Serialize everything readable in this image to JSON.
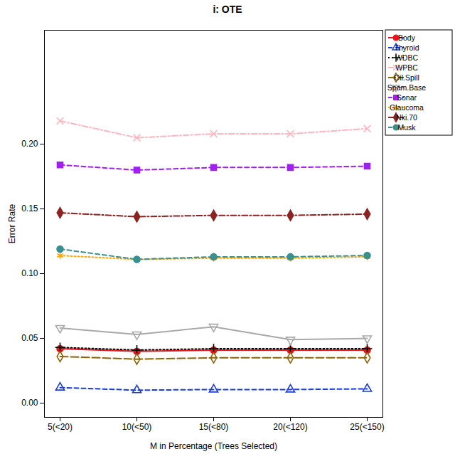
{
  "chart_data": {
    "type": "line",
    "title": "i: OTE",
    "x_label": "M in Percentage (Trees Selected)",
    "y_label": "Error Rate",
    "categories": [
      "5(<20)",
      "10(<50)",
      "15(<80)",
      "20(<120)",
      "25(<150)"
    ],
    "ylim": [
      -0.011,
      0.288
    ],
    "yticks": [
      {
        "value": 0,
        "label": "0.00"
      },
      0.05,
      {
        "value": 0.1,
        "label": "0.10"
      },
      0.15,
      {
        "value": 0.2,
        "label": "0.20"
      }
    ],
    "grid": false,
    "legend": "top-right",
    "series": [
      {
        "name": "Body",
        "color": "#e8141c",
        "marker": "filled-circle",
        "line_style": "solid",
        "values": [
          0.042,
          0.04,
          0.041,
          0.041,
          0.041
        ]
      },
      {
        "name": "Thyroid",
        "color": "#1a3cdc",
        "marker": "open-triangle",
        "line_style": "dashed",
        "values": [
          0.012,
          0.01,
          0.0105,
          0.0105,
          0.011
        ]
      },
      {
        "name": "WDBC",
        "color": "#000000",
        "marker": "plus",
        "line_style": "dotted",
        "values": [
          0.043,
          0.041,
          0.042,
          0.042,
          0.042
        ]
      },
      {
        "name": "WPBC",
        "color": "#ffb6c1",
        "marker": "times",
        "line_style": "dashdot",
        "values": [
          0.218,
          0.205,
          0.208,
          0.208,
          0.212
        ]
      },
      {
        "name": "Oil.Spill",
        "color": "#8b6508",
        "marker": "open-diamond",
        "line_style": "longdash",
        "values": [
          0.036,
          0.034,
          0.035,
          0.035,
          0.035
        ]
      },
      {
        "name": "Spam.Base",
        "color": "#a9a9a9",
        "marker": "open-triangle-down",
        "line_style": "solid",
        "values": [
          0.058,
          0.053,
          0.059,
          0.049,
          0.05
        ]
      },
      {
        "name": "Sonar",
        "color": "#a020f0",
        "marker": "filled-square",
        "line_style": "dashed",
        "values": [
          0.184,
          0.18,
          0.182,
          0.182,
          0.183
        ]
      },
      {
        "name": "Glaucoma",
        "color": "#ffa500",
        "marker": "asterisk",
        "line_style": "dotted",
        "values": [
          0.114,
          0.111,
          0.112,
          0.112,
          0.113
        ]
      },
      {
        "name": "Nki.70",
        "color": "#8b2323",
        "marker": "filled-diamond",
        "line_style": "dashdot",
        "values": [
          0.147,
          0.144,
          0.145,
          0.145,
          0.146
        ]
      },
      {
        "name": "Musk",
        "color": "#3a8f8f",
        "marker": "filled-circle",
        "line_style": "dashed",
        "values": [
          0.119,
          0.111,
          0.113,
          0.113,
          0.114
        ]
      }
    ]
  }
}
